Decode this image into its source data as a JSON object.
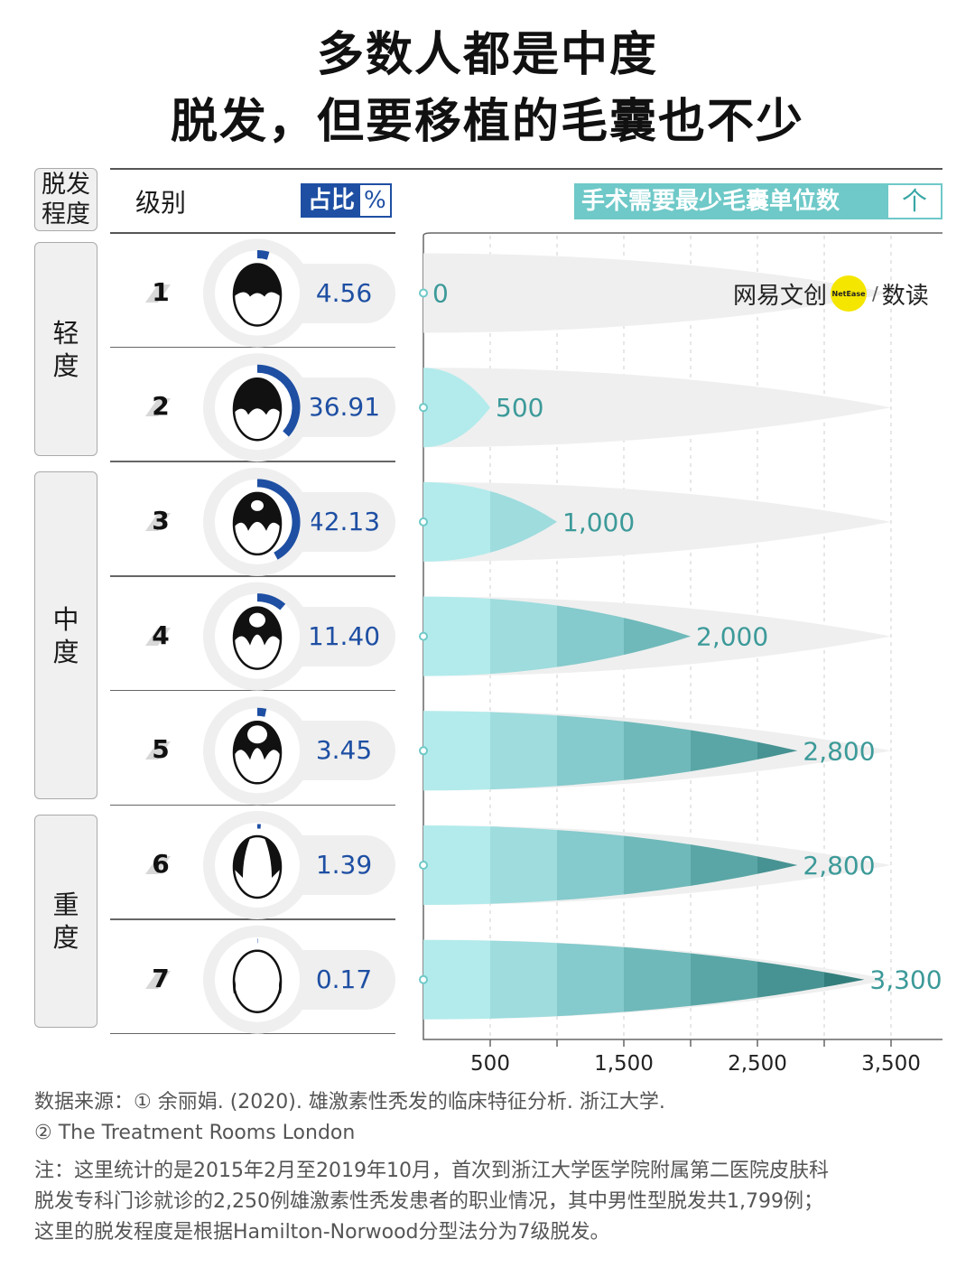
{
  "title": {
    "line1": "多数人都是中度",
    "line2": "脱发，但要移植的毛囊也不少"
  },
  "header": {
    "degree_label_1": "脱发",
    "degree_label_2": "程度",
    "level_label": "级别",
    "pct_label": "占比",
    "pct_unit": "%",
    "surgery_label": "手术需要最少毛囊单位数",
    "surgery_unit": "个"
  },
  "groups": [
    {
      "label_1": "轻",
      "label_2": "度"
    },
    {
      "label_1": "中",
      "label_2": "度"
    },
    {
      "label_1": "重",
      "label_2": "度"
    }
  ],
  "brand": {
    "left": "网易文创",
    "dot": "NetEase",
    "right": "数读"
  },
  "colors": {
    "pct": "#1e4fa3",
    "teal_light": "#b3ebec",
    "teal_dark": "#327e7d",
    "bg_bar": "#efefef"
  },
  "chart_data": {
    "type": "bar",
    "categories": [
      "1",
      "2",
      "3",
      "4",
      "5",
      "6",
      "7"
    ],
    "series": [
      {
        "name": "占比",
        "values": [
          4.56,
          36.91,
          42.13,
          11.4,
          3.45,
          1.39,
          0.17
        ]
      },
      {
        "name": "手术需要最少毛囊单位数",
        "values": [
          0,
          500,
          1000,
          2000,
          2800,
          2800,
          3300
        ]
      }
    ],
    "pct_labels": [
      "4.56",
      "36.91",
      "42.13",
      "11.40",
      "3.45",
      "1.39",
      "0.17"
    ],
    "value_labels": [
      "0",
      "500",
      "1,000",
      "2,000",
      "2,800",
      "2,800",
      "3,300"
    ],
    "xlim": [
      0,
      3500
    ],
    "xticks": [
      500,
      1000,
      1500,
      2000,
      2500,
      3000,
      3500
    ],
    "xtick_labels": [
      "500",
      "1,500",
      "2,500",
      "3,500"
    ],
    "xtick_label_values": [
      500,
      1500,
      2500,
      3500
    ]
  },
  "footer": {
    "source_1": "数据来源：① 余丽娟. (2020). 雄激素性秃发的临床特征分析. 浙江大学.",
    "source_2": "② The Treatment Rooms London",
    "note_1": "注：这里统计的是2015年2月至2019年10月，首次到浙江大学医学院附属第二医院皮肤科",
    "note_2": "脱发专科门诊就诊的2,250例雄激素性秃发患者的职业情况，其中男性型脱发共1,799例；",
    "note_3": "这里的脱发程度是根据Hamilton-Norwood分型法分为7级脱发。"
  }
}
